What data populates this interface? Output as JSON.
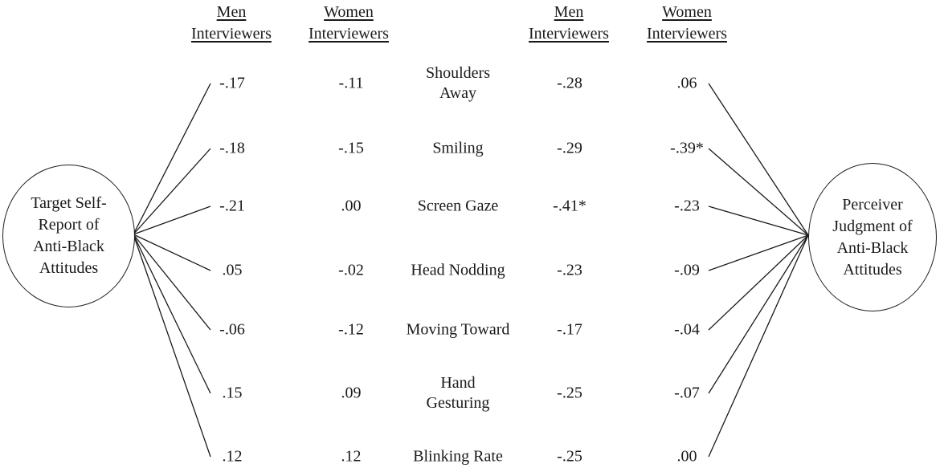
{
  "figure": {
    "left_node": {
      "label": "Target Self-\nReport of\nAnti-Black\nAttitudes"
    },
    "right_node": {
      "label": "Perceiver\nJudgment of\nAnti-Black\nAttitudes"
    },
    "headers": {
      "left_men": {
        "line1": "Men",
        "line2": "Interviewers"
      },
      "left_women": {
        "line1": "Women",
        "line2": "Interviewers"
      },
      "right_men": {
        "line1": "Men",
        "line2": "Interviewers"
      },
      "right_women": {
        "line1": "Women",
        "line2": "Interviewers"
      }
    },
    "rows": [
      {
        "behavior": "Shoulders\nAway",
        "left_men": "-.17",
        "left_women": "-.11",
        "right_men": "-.28",
        "right_women": ".06"
      },
      {
        "behavior": "Smiling",
        "left_men": "-.18",
        "left_women": "-.15",
        "right_men": "-.29",
        "right_women": "-.39*"
      },
      {
        "behavior": "Screen Gaze",
        "left_men": "-.21",
        "left_women": ".00",
        "right_men": "-.41*",
        "right_women": "-.23"
      },
      {
        "behavior": "Head Nodding",
        "left_men": ".05",
        "left_women": "-.02",
        "right_men": "-.23",
        "right_women": "-.09"
      },
      {
        "behavior": "Moving Toward",
        "left_men": "-.06",
        "left_women": "-.12",
        "right_men": "-.17",
        "right_women": "-.04"
      },
      {
        "behavior": "Hand\nGesturing",
        "left_men": ".15",
        "left_women": ".09",
        "right_men": "-.25",
        "right_women": "-.07"
      },
      {
        "behavior": "Blinking Rate",
        "left_men": ".12",
        "left_women": ".12",
        "right_men": "-.25",
        "right_women": ".00"
      }
    ],
    "colors": {
      "ink": "#1a1a1a",
      "background": "#ffffff"
    }
  }
}
